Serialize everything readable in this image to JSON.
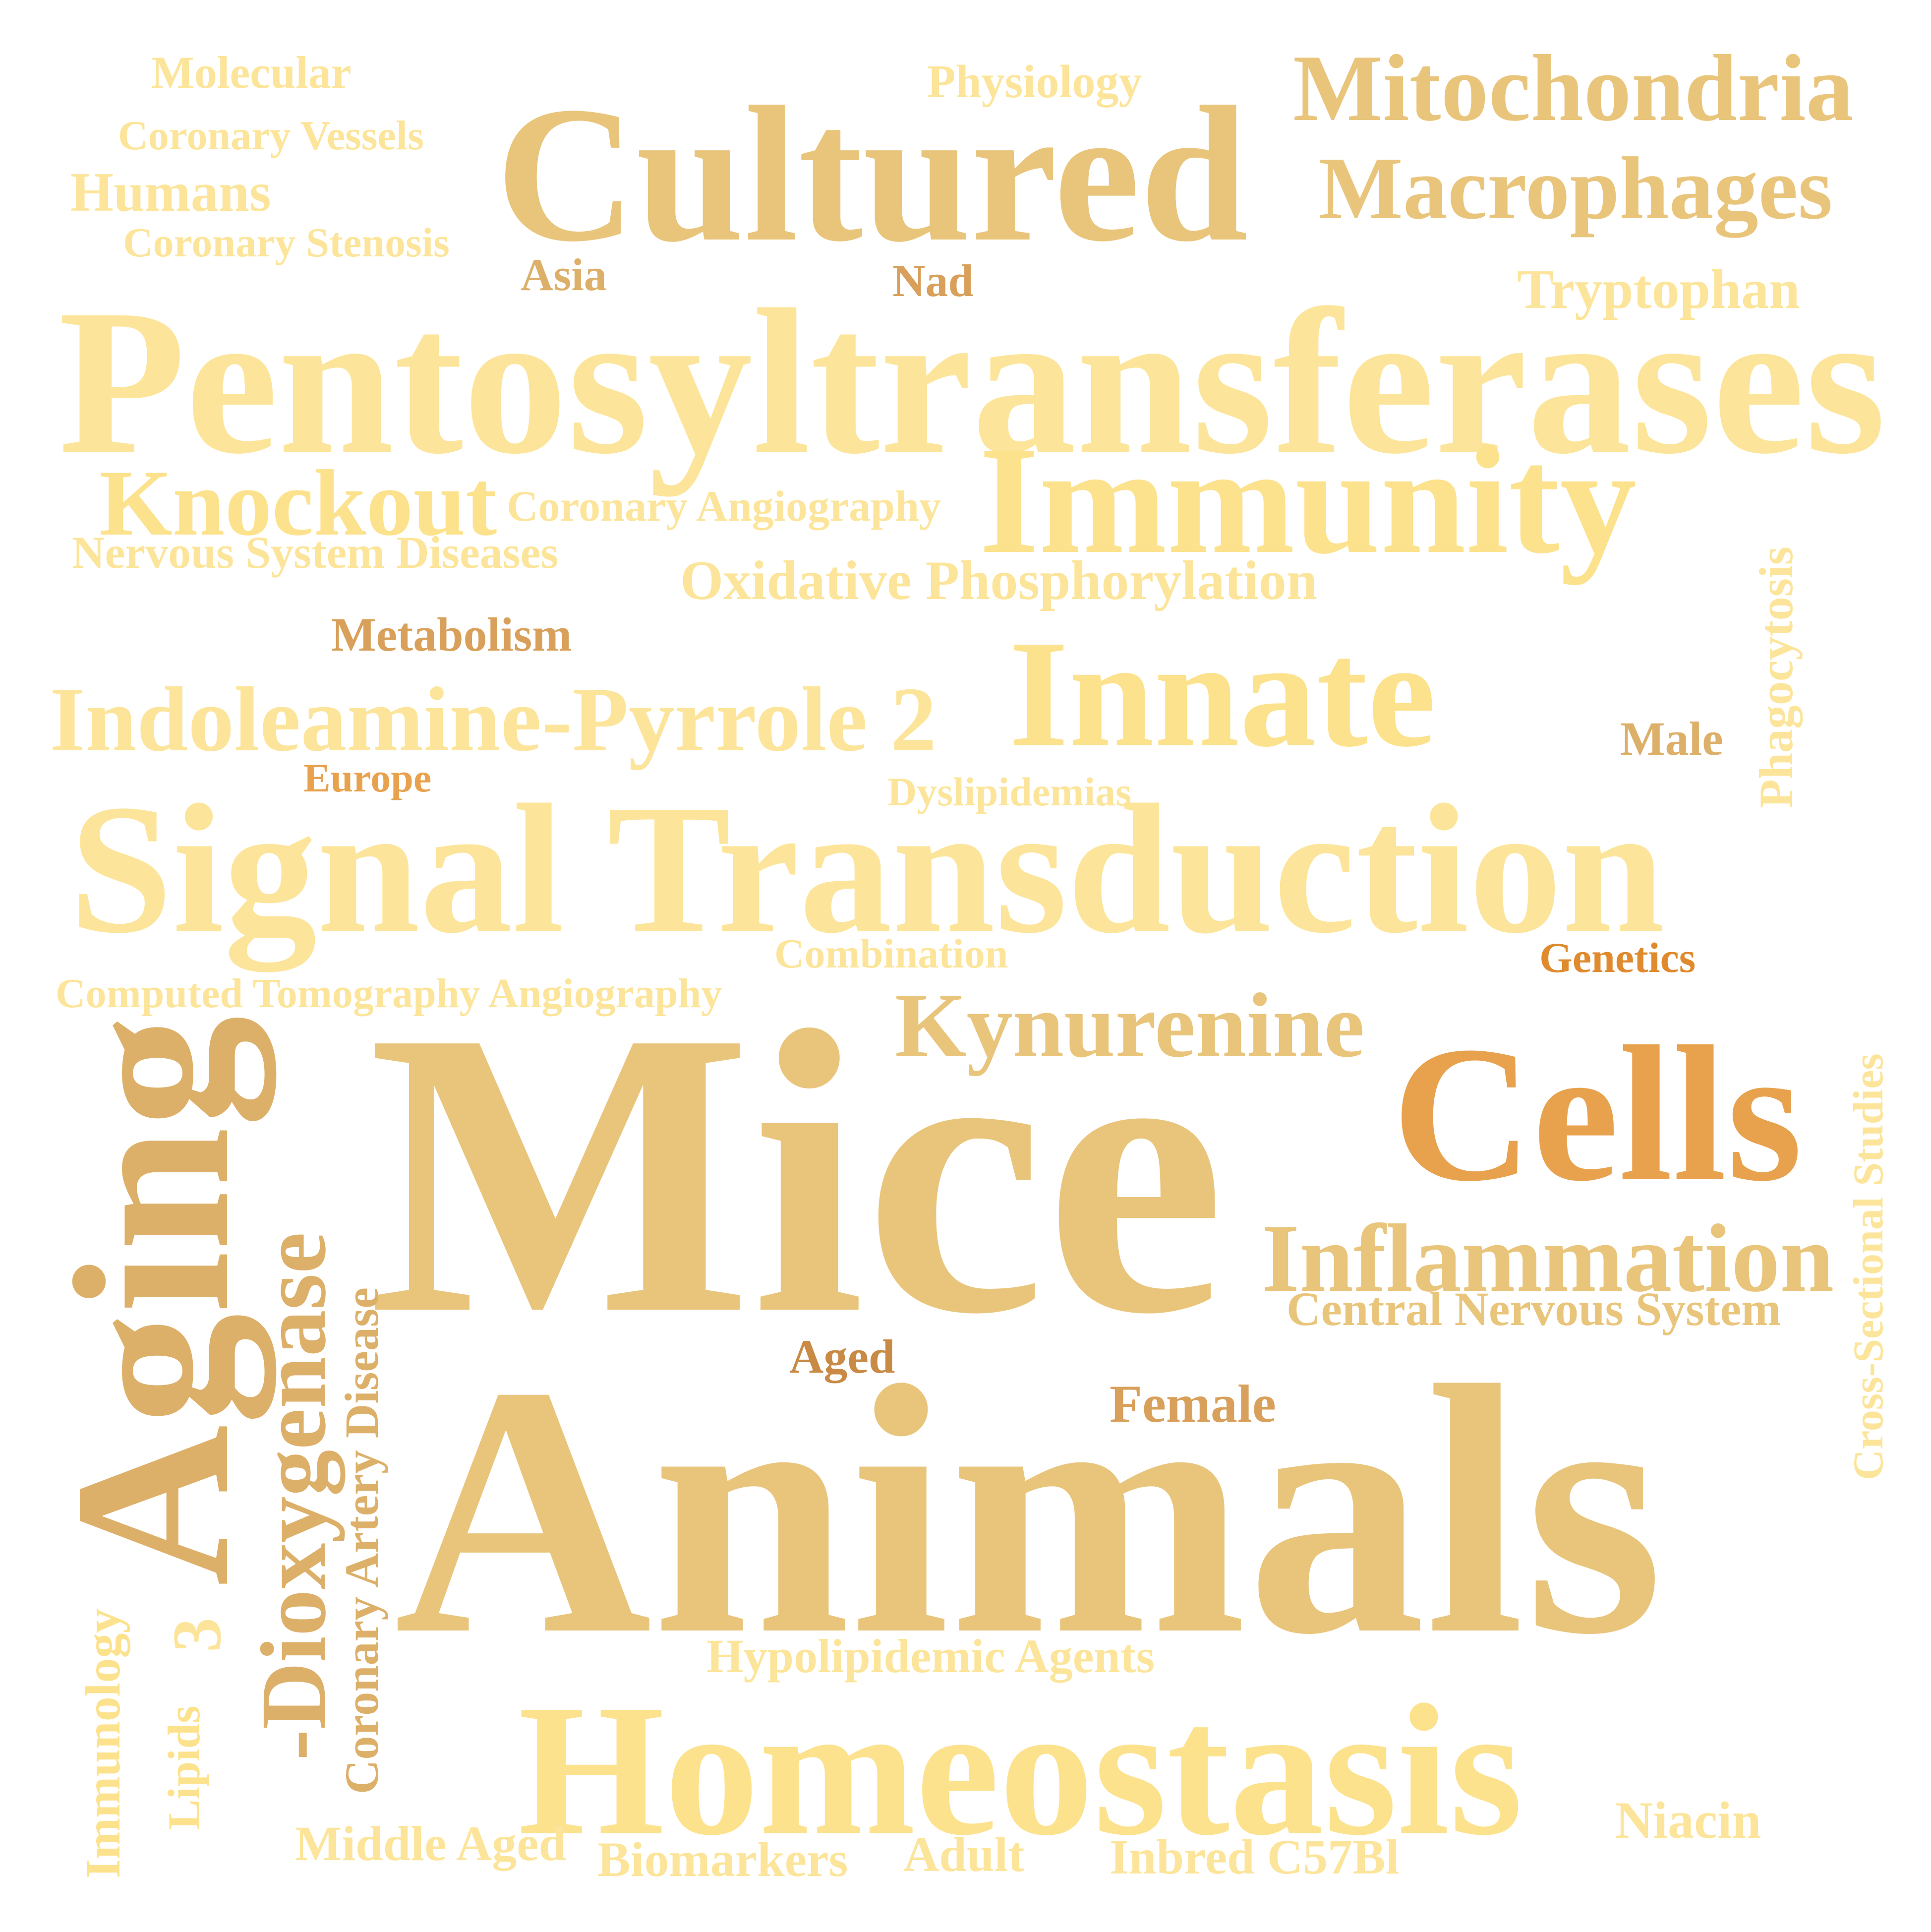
{
  "words": {
    "molecular": "Molecular",
    "physiology": "Physiology",
    "mitochondria": "Mitochondria",
    "coronary_vessels": "Coronary Vessels",
    "cultured": "Cultured",
    "macrophages": "Macrophages",
    "humans": "Humans",
    "coronary_stenosis": "Coronary Stenosis",
    "asia": "Asia",
    "nad": "Nad",
    "tryptophan": "Tryptophan",
    "pentosyltransferases": "Pentosyltransferases",
    "knockout": "Knockout",
    "coronary_angiography": "Coronary Angiography",
    "immunity": "Immunity",
    "nervous_system_diseases": "Nervous System Diseases",
    "oxidative_phosphorylation": "Oxidative Phosphorylation",
    "phagocytosis": "Phagocytosis",
    "metabolism": "Metabolism",
    "indoleamine_pyrrole": "Indoleamine-Pyrrole 2",
    "innate": "Innate",
    "male": "Male",
    "europe": "Europe",
    "dyslipidemias": "Dyslipidemias",
    "signal_transduction": "Signal Transduction",
    "combination": "Combination",
    "genetics": "Genetics",
    "computed_tomography_angiography": "Computed Tomography Angiography",
    "kynurenine": "Kynurenine",
    "aging": "Aging",
    "mice": "Mice",
    "cells": "Cells",
    "cross_sectional_studies": "Cross-Sectional Studies",
    "dioxygenase": "-Dioxygenase",
    "inflammation": "Inflammation",
    "central_nervous_system": "Central Nervous System",
    "coronary_artery_disease": "Coronary Artery Disease",
    "aged": "Aged",
    "female": "Female",
    "animals": "Animals",
    "three": "3",
    "immunology": "Immunology",
    "hypolipidemic_agents": "Hypolipidemic Agents",
    "lipids": "Lipids",
    "homeostasis": "Homeostasis",
    "niacin": "Niacin",
    "middle_aged": "Middle Aged",
    "biomarkers": "Biomarkers",
    "adult": "Adult",
    "inbred_c57bl": "Inbred C57Bl"
  },
  "colors": {
    "light_yellow": "#fde28d",
    "pale_yellow": "#fce59a",
    "khaki": "#e9c57c",
    "tan": "#ddb06a",
    "orange_tan": "#d8a05a",
    "orange": "#e8a24d",
    "deep_orange": "#e08a2e",
    "brown_orange": "#c88a45"
  }
}
